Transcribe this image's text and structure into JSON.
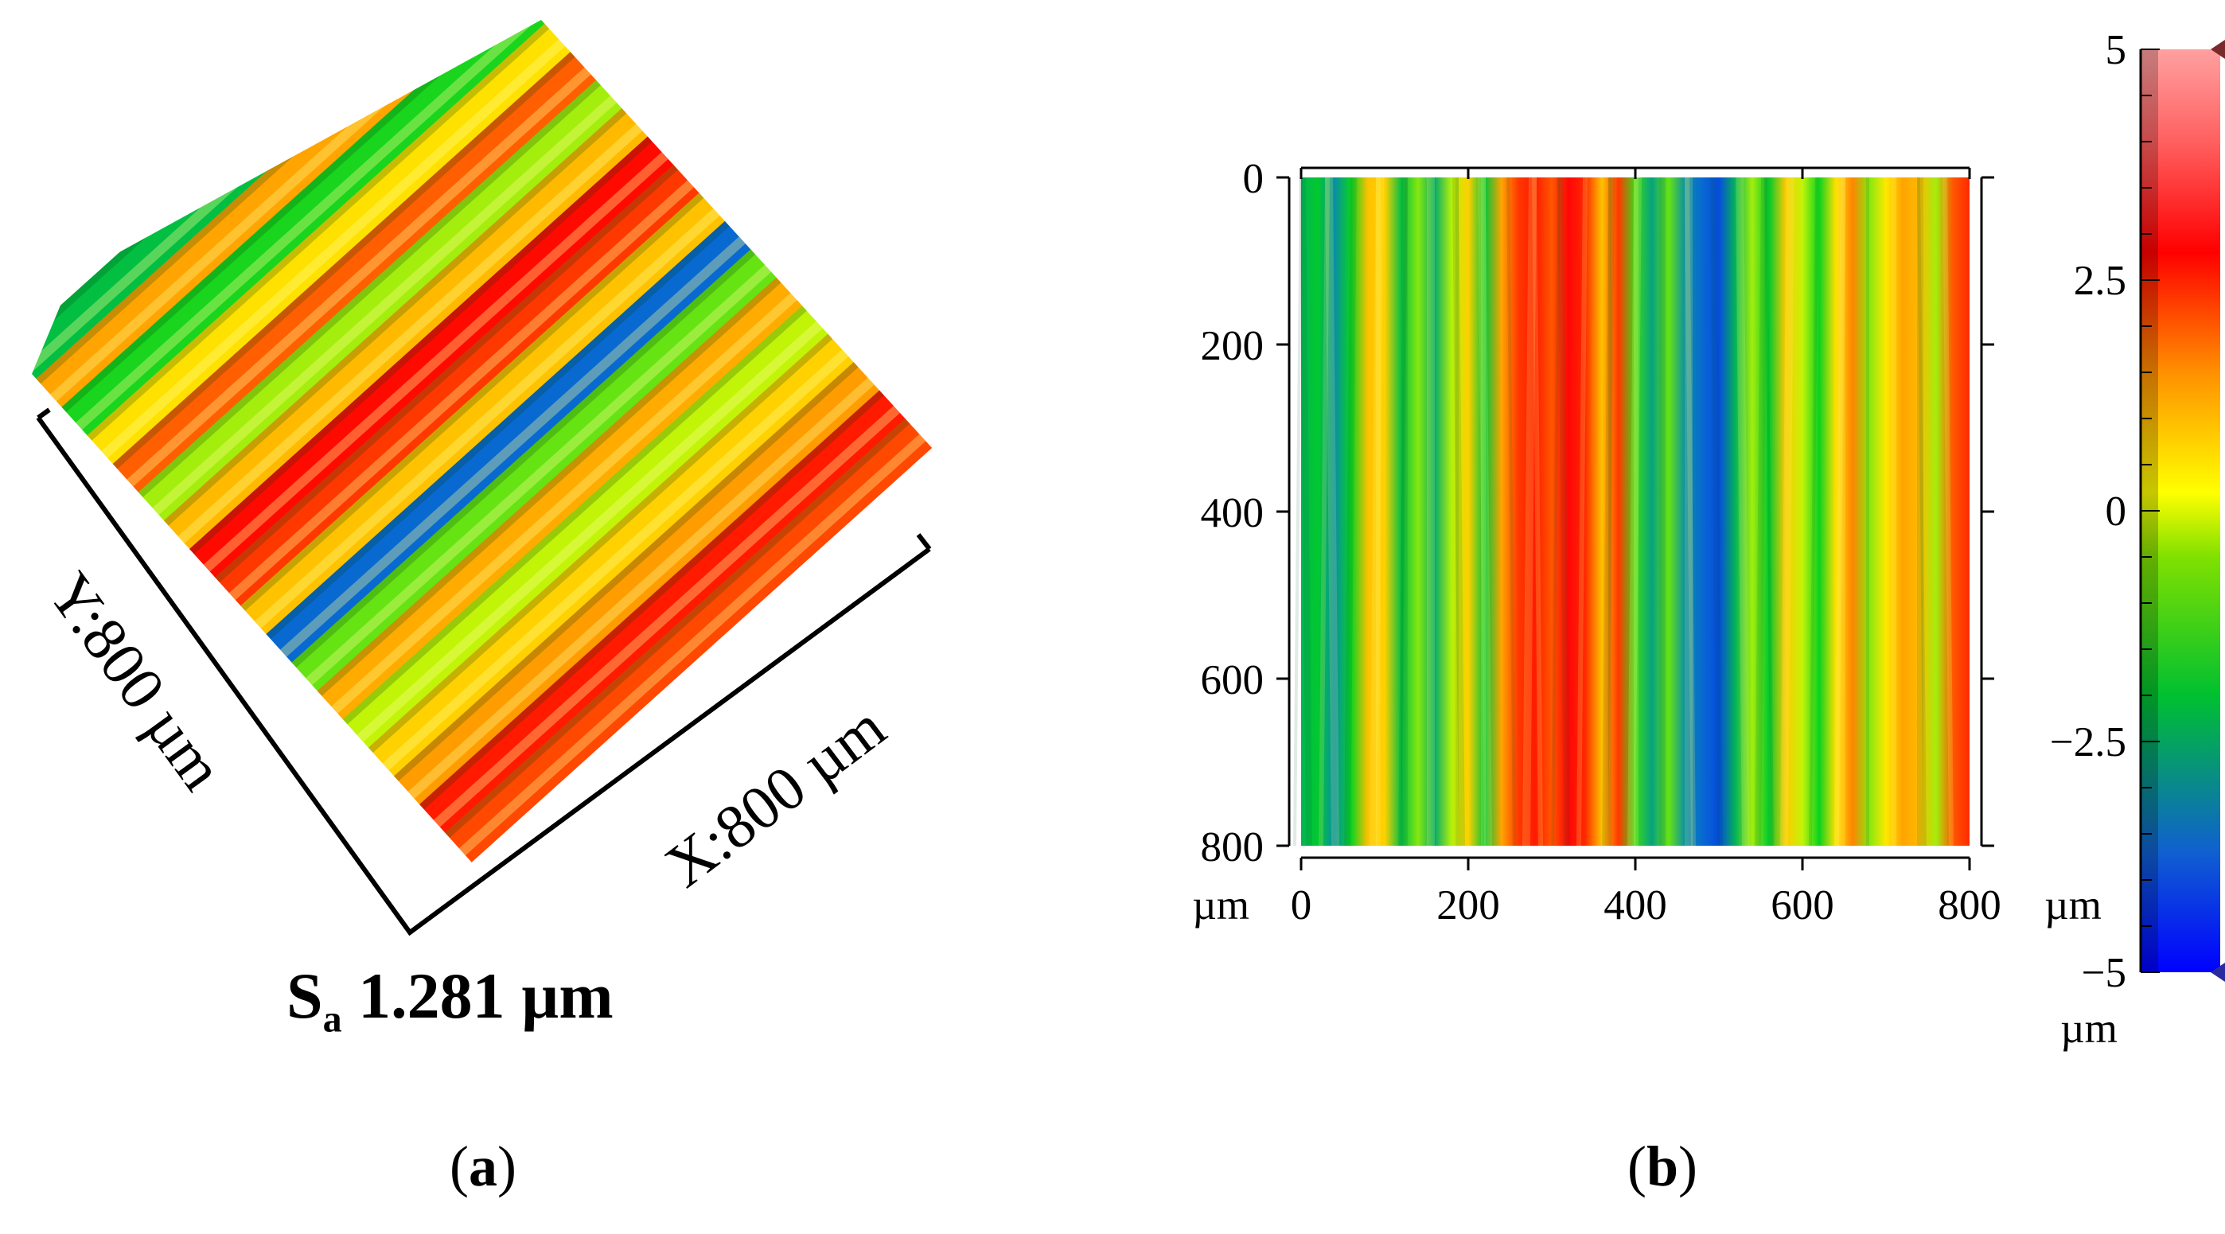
{
  "panels": {
    "a": {
      "label": "a",
      "dim_y": "Y:800 µm",
      "dim_x": "X:800 µm",
      "roughness_symbol": "S",
      "roughness_sub": "a",
      "roughness_value": "1.281 µm"
    },
    "b": {
      "label": "b"
    }
  },
  "chart_data": [
    {
      "type": "surface3d",
      "panel": "a",
      "title": "",
      "x_extent_um": 800,
      "y_extent_um": 800,
      "annotations": [
        "Y:800 µm",
        "X:800 µm",
        "Sa 1.281 µm"
      ],
      "ridge_profile_um": [
        -2.0,
        1.2,
        -1.5,
        0.4,
        2.1,
        -0.6,
        0.9,
        3.2,
        2.6,
        0.8,
        -3.6,
        -1.0,
        1.1,
        -0.4,
        0.6,
        1.3,
        3.0,
        2.4
      ]
    },
    {
      "type": "heatmap",
      "panel": "b",
      "title": "",
      "x_ticks": [
        "0",
        "200",
        "400",
        "600",
        "800"
      ],
      "y_ticks": [
        "0",
        "200",
        "400",
        "600",
        "800"
      ],
      "x_unit": "µm",
      "y_unit": "µm",
      "xlim": [
        0,
        800
      ],
      "ylim": [
        0,
        800
      ],
      "height_profile_x_um": [
        0,
        20,
        40,
        60,
        80,
        100,
        120,
        140,
        160,
        180,
        200,
        220,
        240,
        260,
        280,
        300,
        320,
        340,
        360,
        380,
        400,
        420,
        440,
        460,
        480,
        500,
        520,
        540,
        560,
        580,
        600,
        620,
        640,
        660,
        680,
        700,
        720,
        740,
        760,
        780,
        800
      ],
      "height_profile_z_um": [
        -2.2,
        -1.8,
        -3.0,
        -1.6,
        0.8,
        0.6,
        -2.0,
        -0.8,
        -2.4,
        -0.5,
        0.6,
        -1.9,
        1.2,
        2.6,
        3.0,
        2.2,
        3.4,
        2.8,
        0.8,
        2.6,
        -1.3,
        -2.6,
        -1.0,
        -3.0,
        -3.6,
        -4.0,
        -2.2,
        -0.6,
        -1.8,
        0.7,
        -0.4,
        -1.6,
        0.4,
        1.6,
        -0.8,
        0.3,
        1.2,
        0.9,
        -0.6,
        2.2,
        2.8
      ]
    },
    {
      "type": "colorbar",
      "panel": "b",
      "tick_labels": [
        "5",
        "2.5",
        "0",
        "−2.5",
        "−5"
      ],
      "unit": "µm",
      "range": [
        -5,
        5
      ],
      "colormap": [
        "#0000ff",
        "#0a7dc8",
        "#00d020",
        "#ffff00",
        "#ff8000",
        "#ff0000",
        "#ff8a8a"
      ]
    }
  ]
}
